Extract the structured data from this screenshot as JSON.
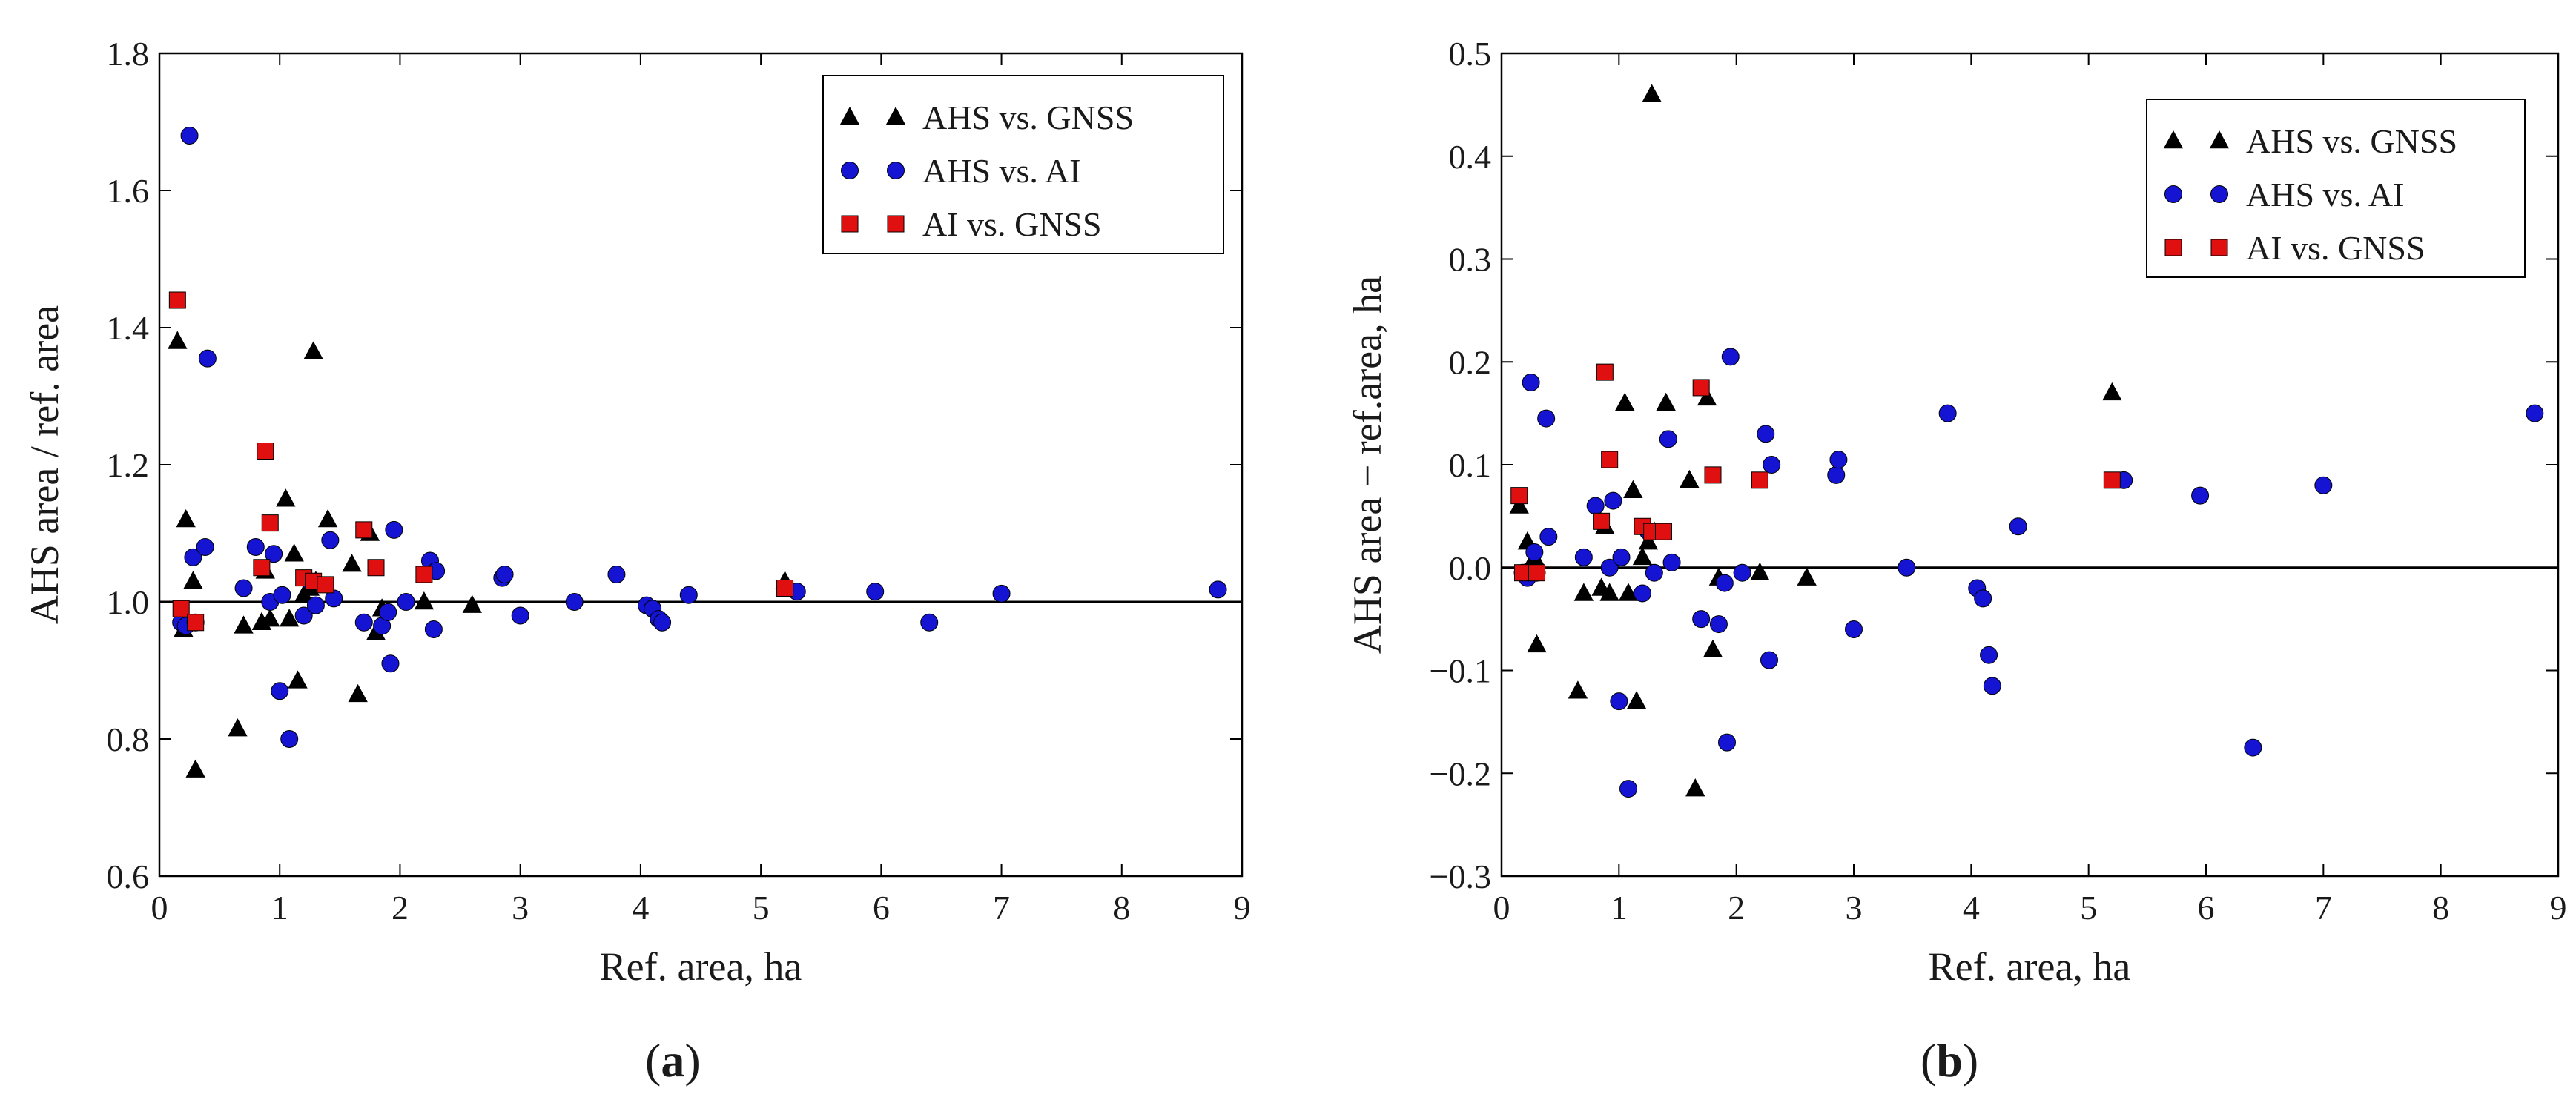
{
  "figure": {
    "panels": [
      "a",
      "b"
    ]
  },
  "colors": {
    "ahs_gnss": "#000000",
    "ahs_ai": "#1414d2",
    "ai_gnss": "#e01010",
    "axis": "#000000"
  },
  "chart_data": [
    {
      "type": "scatter",
      "caption_letter": "a",
      "xlabel": "Ref. area, ha",
      "ylabel": "AHS area / ref. area",
      "xlim": [
        0,
        9
      ],
      "ylim": [
        0.6,
        1.8
      ],
      "xticks": [
        0,
        1,
        2,
        3,
        4,
        5,
        6,
        7,
        8,
        9
      ],
      "yticks": [
        0.6,
        0.8,
        1.0,
        1.2,
        1.4,
        1.6,
        1.8
      ],
      "ytick_labels": [
        "0.6",
        "0.8",
        "1.0",
        "1.2",
        "1.4",
        "1.6",
        "1.8"
      ],
      "reference_line": 1.0,
      "legend_position": "top-right",
      "series": [
        {
          "name": "AHS vs. GNSS",
          "marker": "triangle",
          "color": "#000000",
          "points": [
            [
              0.15,
              1.38
            ],
            [
              0.2,
              0.96
            ],
            [
              0.22,
              1.12
            ],
            [
              0.28,
              1.03
            ],
            [
              0.3,
              0.755
            ],
            [
              0.65,
              0.815
            ],
            [
              0.7,
              0.965
            ],
            [
              0.85,
              0.97
            ],
            [
              0.88,
              1.045
            ],
            [
              0.92,
              0.975
            ],
            [
              1.05,
              1.15
            ],
            [
              1.08,
              0.975
            ],
            [
              1.12,
              1.07
            ],
            [
              1.15,
              0.885
            ],
            [
              1.2,
              1.01
            ],
            [
              1.25,
              1.02
            ],
            [
              1.28,
              1.365
            ],
            [
              1.3,
              1.03
            ],
            [
              1.4,
              1.12
            ],
            [
              1.6,
              1.055
            ],
            [
              1.65,
              0.865
            ],
            [
              1.75,
              1.1
            ],
            [
              1.8,
              0.955
            ],
            [
              1.85,
              0.99
            ],
            [
              2.2,
              1.0
            ],
            [
              2.6,
              0.995
            ],
            [
              5.2,
              1.03
            ]
          ]
        },
        {
          "name": "AHS vs. AI",
          "marker": "circle",
          "color": "#1414d2",
          "points": [
            [
              0.18,
              0.97
            ],
            [
              0.22,
              0.965
            ],
            [
              0.25,
              1.68
            ],
            [
              0.28,
              1.065
            ],
            [
              0.3,
              0.97
            ],
            [
              0.38,
              1.08
            ],
            [
              0.4,
              1.355
            ],
            [
              0.7,
              1.02
            ],
            [
              0.8,
              1.08
            ],
            [
              0.92,
              1.0
            ],
            [
              0.95,
              1.07
            ],
            [
              1.0,
              0.87
            ],
            [
              1.02,
              1.01
            ],
            [
              1.08,
              0.8
            ],
            [
              1.2,
              0.98
            ],
            [
              1.25,
              1.03
            ],
            [
              1.3,
              0.995
            ],
            [
              1.42,
              1.09
            ],
            [
              1.45,
              1.005
            ],
            [
              1.7,
              0.97
            ],
            [
              1.85,
              0.965
            ],
            [
              1.9,
              0.985
            ],
            [
              1.92,
              0.91
            ],
            [
              1.95,
              1.105
            ],
            [
              2.05,
              1.0
            ],
            [
              2.25,
              1.06
            ],
            [
              2.28,
              0.96
            ],
            [
              2.3,
              1.045
            ],
            [
              2.85,
              1.035
            ],
            [
              2.87,
              1.04
            ],
            [
              3.0,
              0.98
            ],
            [
              3.45,
              1.0
            ],
            [
              3.8,
              1.04
            ],
            [
              4.05,
              0.995
            ],
            [
              4.1,
              0.99
            ],
            [
              4.15,
              0.975
            ],
            [
              4.18,
              0.97
            ],
            [
              4.4,
              1.01
            ],
            [
              5.3,
              1.015
            ],
            [
              5.95,
              1.015
            ],
            [
              6.4,
              0.97
            ],
            [
              7.0,
              1.012
            ],
            [
              8.8,
              1.018
            ]
          ]
        },
        {
          "name": "AI vs. GNSS",
          "marker": "square",
          "color": "#e01010",
          "points": [
            [
              0.15,
              1.44
            ],
            [
              0.18,
              0.99
            ],
            [
              0.3,
              0.97
            ],
            [
              0.85,
              1.05
            ],
            [
              0.88,
              1.22
            ],
            [
              0.92,
              1.115
            ],
            [
              1.2,
              1.035
            ],
            [
              1.28,
              1.03
            ],
            [
              1.38,
              1.025
            ],
            [
              1.7,
              1.105
            ],
            [
              1.8,
              1.05
            ],
            [
              2.2,
              1.04
            ],
            [
              5.2,
              1.02
            ]
          ]
        }
      ]
    },
    {
      "type": "scatter",
      "caption_letter": "b",
      "xlabel": "Ref. area, ha",
      "ylabel": "AHS area − ref.area, ha",
      "xlim": [
        0,
        9
      ],
      "ylim": [
        -0.3,
        0.5
      ],
      "xticks": [
        0,
        1,
        2,
        3,
        4,
        5,
        6,
        7,
        8,
        9
      ],
      "yticks": [
        -0.3,
        -0.2,
        -0.1,
        0.0,
        0.1,
        0.2,
        0.3,
        0.4,
        0.5
      ],
      "ytick_labels": [
        "−0.3",
        "−0.2",
        "−0.1",
        "0.0",
        "0.1",
        "0.2",
        "0.3",
        "0.4",
        "0.5"
      ],
      "reference_line": 0.0,
      "legend_position": "top-right",
      "series": [
        {
          "name": "AHS vs. GNSS",
          "marker": "triangle",
          "color": "#000000",
          "points": [
            [
              0.15,
              0.06
            ],
            [
              0.2,
              -0.005
            ],
            [
              0.22,
              0.025
            ],
            [
              0.28,
              0.01
            ],
            [
              0.3,
              -0.075
            ],
            [
              0.65,
              -0.12
            ],
            [
              0.7,
              -0.025
            ],
            [
              0.85,
              -0.02
            ],
            [
              0.88,
              0.04
            ],
            [
              0.92,
              -0.025
            ],
            [
              1.05,
              0.16
            ],
            [
              1.08,
              -0.025
            ],
            [
              1.12,
              0.075
            ],
            [
              1.15,
              -0.13
            ],
            [
              1.2,
              0.01
            ],
            [
              1.25,
              0.025
            ],
            [
              1.28,
              0.46
            ],
            [
              1.3,
              0.035
            ],
            [
              1.4,
              0.16
            ],
            [
              1.6,
              0.085
            ],
            [
              1.65,
              -0.215
            ],
            [
              1.75,
              0.165
            ],
            [
              1.8,
              -0.08
            ],
            [
              1.85,
              -0.01
            ],
            [
              2.2,
              -0.005
            ],
            [
              2.6,
              -0.01
            ],
            [
              5.2,
              0.17
            ]
          ]
        },
        {
          "name": "AHS vs. AI",
          "marker": "circle",
          "color": "#1414d2",
          "points": [
            [
              0.18,
              -0.005
            ],
            [
              0.22,
              -0.01
            ],
            [
              0.25,
              0.18
            ],
            [
              0.28,
              0.015
            ],
            [
              0.3,
              -0.005
            ],
            [
              0.38,
              0.145
            ],
            [
              0.4,
              0.03
            ],
            [
              0.7,
              0.01
            ],
            [
              0.8,
              0.06
            ],
            [
              0.92,
              0.0
            ],
            [
              0.95,
              0.065
            ],
            [
              1.0,
              -0.13
            ],
            [
              1.02,
              0.01
            ],
            [
              1.08,
              -0.215
            ],
            [
              1.2,
              -0.025
            ],
            [
              1.25,
              0.035
            ],
            [
              1.3,
              -0.005
            ],
            [
              1.42,
              0.125
            ],
            [
              1.45,
              0.005
            ],
            [
              1.7,
              -0.05
            ],
            [
              1.85,
              -0.055
            ],
            [
              1.9,
              -0.015
            ],
            [
              1.92,
              -0.17
            ],
            [
              1.95,
              0.205
            ],
            [
              2.05,
              -0.005
            ],
            [
              2.25,
              0.13
            ],
            [
              2.28,
              -0.09
            ],
            [
              2.3,
              0.1
            ],
            [
              2.85,
              0.09
            ],
            [
              2.87,
              0.105
            ],
            [
              3.0,
              -0.06
            ],
            [
              3.45,
              0.0
            ],
            [
              3.8,
              0.15
            ],
            [
              4.05,
              -0.02
            ],
            [
              4.1,
              -0.03
            ],
            [
              4.15,
              -0.085
            ],
            [
              4.18,
              -0.115
            ],
            [
              4.4,
              0.04
            ],
            [
              5.3,
              0.085
            ],
            [
              5.95,
              0.07
            ],
            [
              6.4,
              -0.175
            ],
            [
              7.0,
              0.08
            ],
            [
              8.8,
              0.15
            ]
          ]
        },
        {
          "name": "AI vs. GNSS",
          "marker": "square",
          "color": "#e01010",
          "points": [
            [
              0.15,
              0.07
            ],
            [
              0.18,
              -0.005
            ],
            [
              0.3,
              -0.005
            ],
            [
              0.85,
              0.045
            ],
            [
              0.88,
              0.19
            ],
            [
              0.92,
              0.105
            ],
            [
              1.2,
              0.04
            ],
            [
              1.28,
              0.035
            ],
            [
              1.38,
              0.035
            ],
            [
              1.7,
              0.175
            ],
            [
              1.8,
              0.09
            ],
            [
              2.2,
              0.085
            ],
            [
              5.2,
              0.085
            ]
          ]
        }
      ]
    }
  ]
}
